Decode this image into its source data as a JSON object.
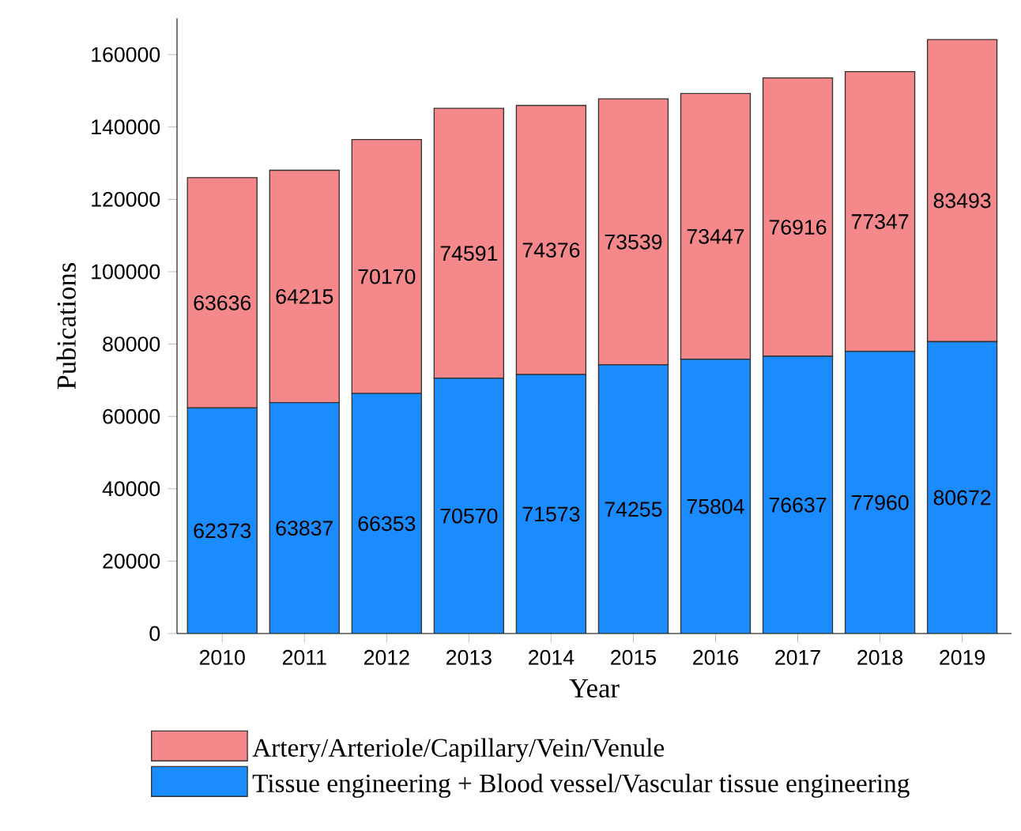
{
  "chart_data": {
    "type": "bar",
    "stacked": true,
    "xlabel": "Year",
    "ylabel": "Pubications",
    "categories": [
      "2010",
      "2011",
      "2012",
      "2013",
      "2014",
      "2015",
      "2016",
      "2017",
      "2018",
      "2019"
    ],
    "series": [
      {
        "name": "Tissue engineering + Blood vessel/Vascular tissue engineering",
        "color": "#1a8cff",
        "values": [
          62373,
          63837,
          66353,
          70570,
          71573,
          74255,
          75804,
          76637,
          77960,
          80672
        ]
      },
      {
        "name": "Artery/Arteriole/Capillary/Vein/Venule",
        "color": "#f4888a",
        "values": [
          63636,
          64215,
          70170,
          74591,
          74376,
          73539,
          73447,
          76916,
          77347,
          83493
        ]
      }
    ],
    "ylim": [
      0,
      170000
    ],
    "yticks": [
      0,
      20000,
      40000,
      60000,
      80000,
      100000,
      120000,
      140000,
      160000
    ],
    "data_labels": true,
    "legend": "bottom"
  }
}
